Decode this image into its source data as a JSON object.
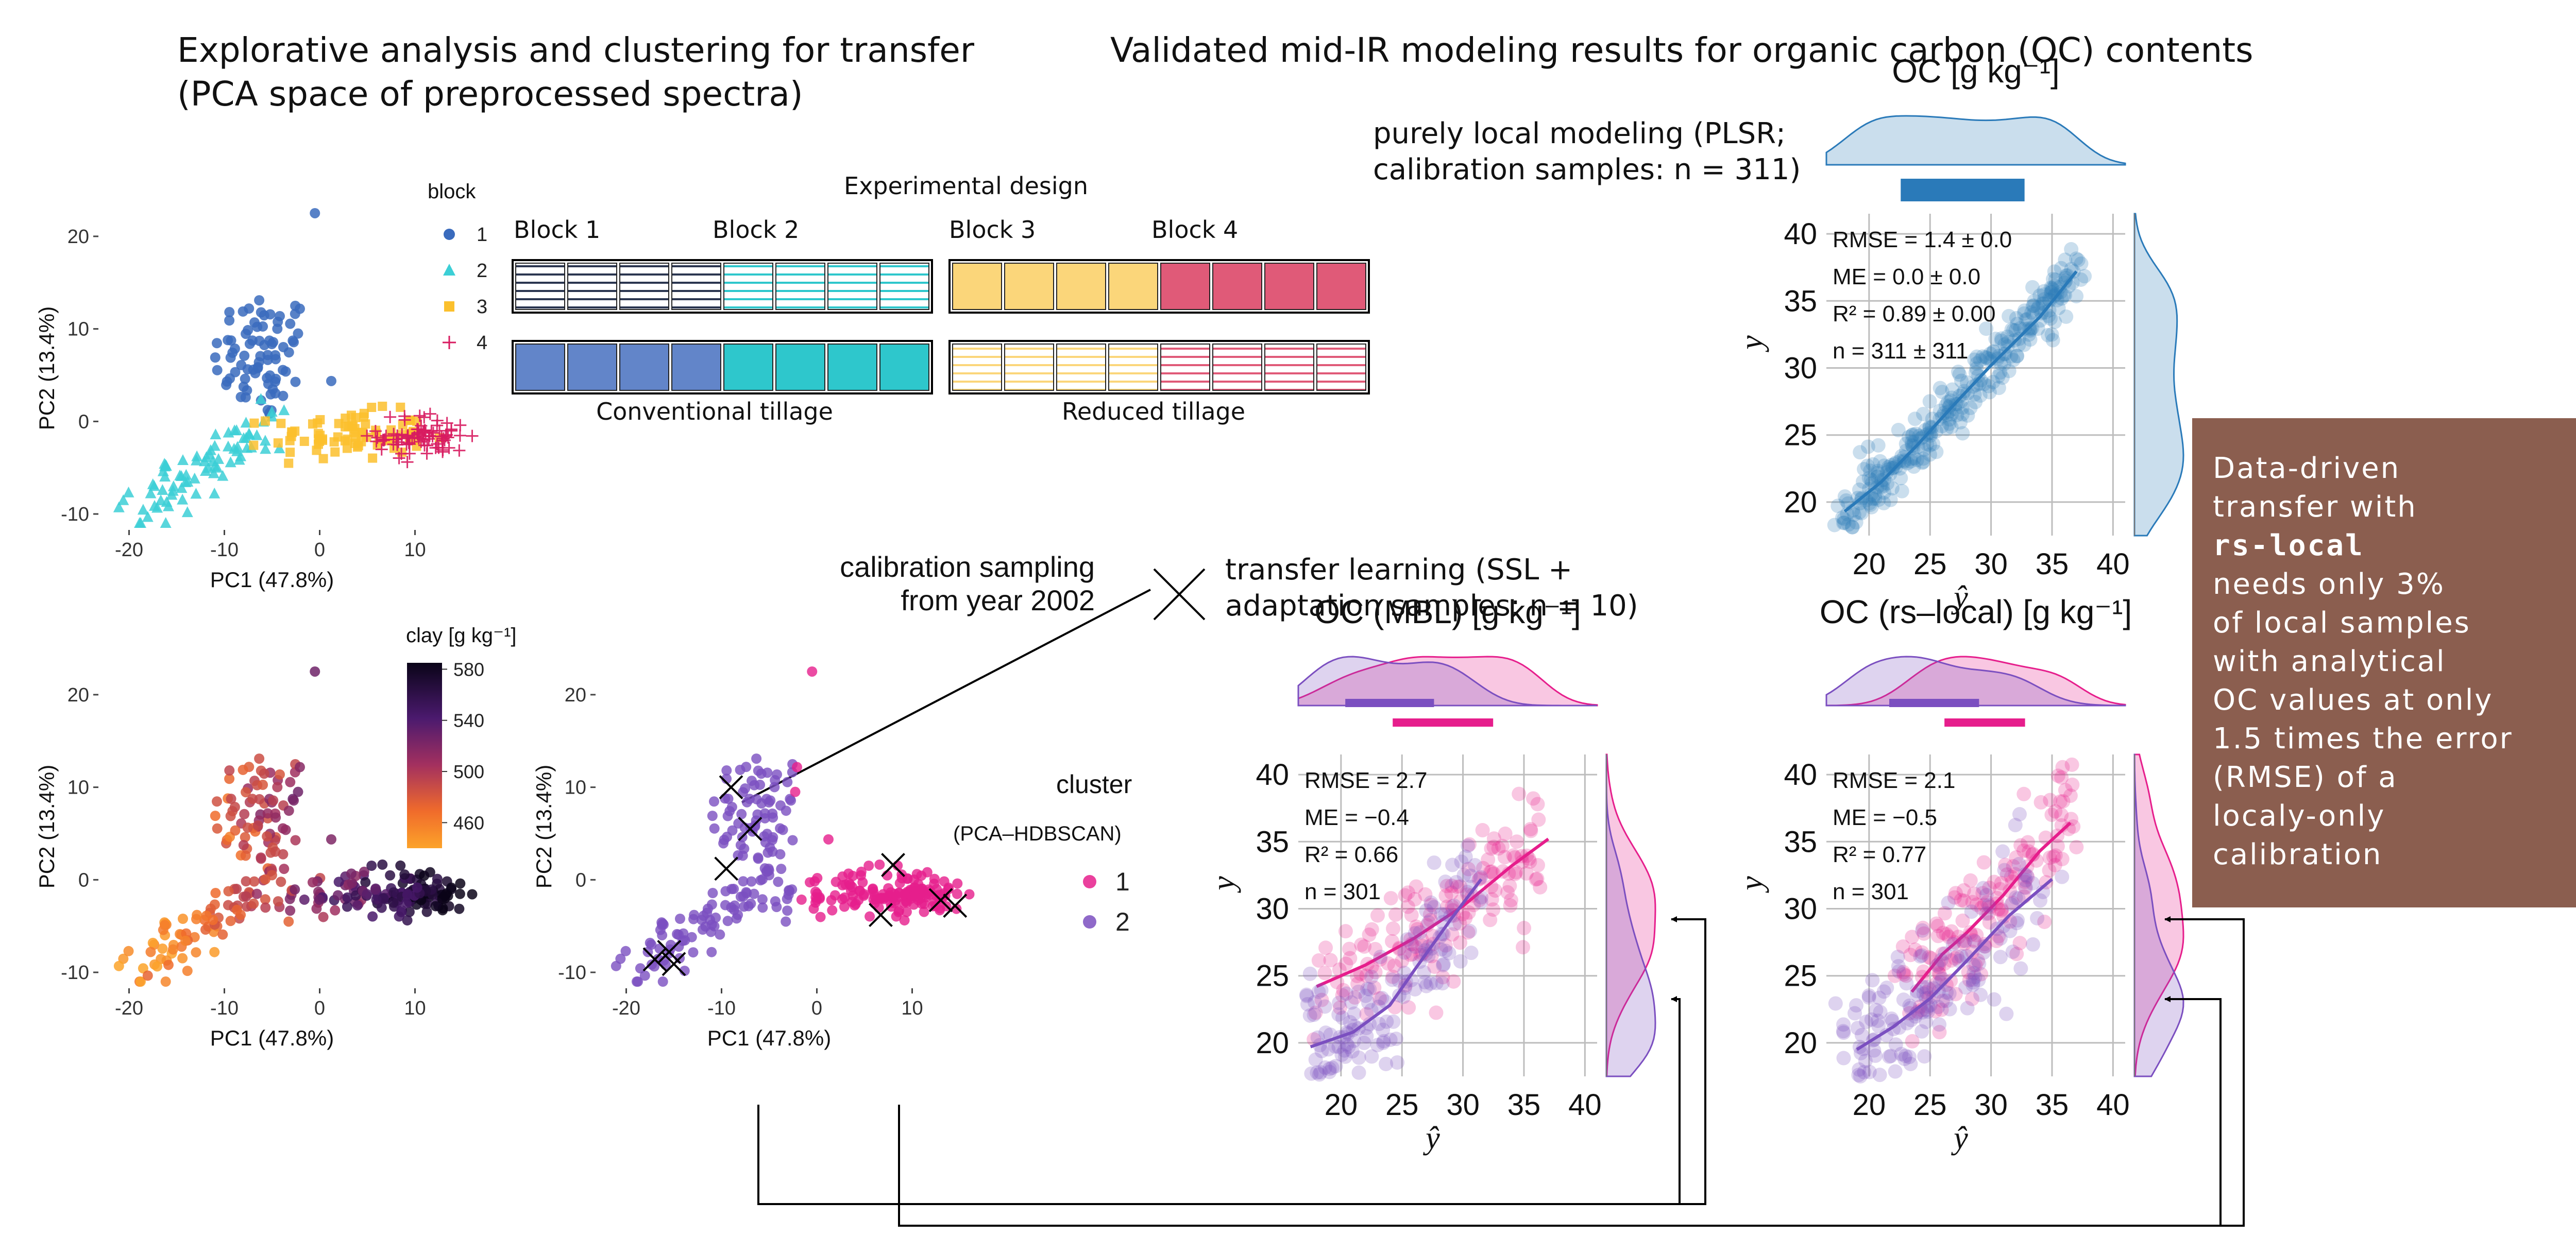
{
  "titles": {
    "left_line1": "Explorative analysis and clustering for transfer",
    "left_line2": "(PCA space of preprocessed spectra)",
    "right": "Validated mid-IR modeling results for organic carbon (OC) contents"
  },
  "labels": {
    "local_line1": "purely local modeling (PLSR;",
    "local_line2": "calibration samples: n = 311)",
    "calib_line1": "calibration sampling",
    "calib_line2": "from year 2002",
    "transfer_line1": "transfer learning (SSL +",
    "transfer_line2": "adaptation samples: n = 10)"
  },
  "design": {
    "title": "Experimental design",
    "blocks": [
      "Block 1",
      "Block 2",
      "Block 3",
      "Block 4"
    ],
    "conventional": "Conventional tillage",
    "reduced": "Reduced tillage",
    "block_colors": [
      "#6285c9",
      "#2ec7cc",
      "#fbd67a",
      "#e05a78"
    ],
    "dark_stripe": "#2b3650"
  },
  "callout": {
    "line1": "Data-driven",
    "line2": "transfer with",
    "line3": "rs-local",
    "line4": "needs only 3%",
    "line5": "of local samples",
    "line6": "with analytical",
    "line7": "OC values at only",
    "line8": "1.5 times the error",
    "line9": "(RMSE) of a",
    "line10": "localy-only",
    "line11": "calibration",
    "color": "#8b5e4f"
  },
  "chart_data": [
    {
      "id": "pca_block",
      "type": "scatter",
      "xlabel": "PC1 (47.8%)",
      "ylabel": "PC2 (13.4%)",
      "xlim": [
        -23,
        17
      ],
      "ylim": [
        -11.5,
        23
      ],
      "xticks": [
        -20,
        -10,
        0,
        10
      ],
      "yticks": [
        -10,
        0,
        10,
        20
      ],
      "legend_title": "block",
      "legend": [
        "1",
        "2",
        "3",
        "4"
      ],
      "colors": [
        "#3a6bbd",
        "#3ccfd6",
        "#fbc02d",
        "#d81b60"
      ],
      "series_centers": [
        {
          "name": "1",
          "center": [
            -6,
            7
          ],
          "spread": [
            2.6,
            3.6
          ]
        },
        {
          "name": "2",
          "center": [
            -14,
            -4.5
          ],
          "spread": [
            3.8,
            3.0
          ]
        },
        {
          "name": "3",
          "center": [
            3,
            -1.5
          ],
          "spread": [
            4.0,
            1.3
          ]
        },
        {
          "name": "4",
          "center": [
            11,
            -1.6
          ],
          "spread": [
            2.4,
            1.2
          ]
        }
      ],
      "grid": false
    },
    {
      "id": "pca_clay",
      "type": "scatter",
      "xlabel": "PC1 (47.8%)",
      "ylabel": "PC2 (13.4%)",
      "xlim": [
        -23,
        17
      ],
      "ylim": [
        -11.5,
        23
      ],
      "xticks": [
        -20,
        -10,
        0,
        10
      ],
      "yticks": [
        -10,
        0,
        10,
        20
      ],
      "colorbar_title": "clay [g kg⁻¹]",
      "colorbar_ticks": [
        "580",
        "540",
        "500",
        "460"
      ],
      "colorbar_range": [
        440,
        585
      ],
      "grid": false
    },
    {
      "id": "pca_cluster",
      "type": "scatter",
      "xlabel": "PC1 (47.8%)",
      "ylabel": "PC2 (13.4%)",
      "xlim": [
        -23,
        17
      ],
      "ylim": [
        -11.5,
        23
      ],
      "xticks": [
        -20,
        -10,
        0,
        10
      ],
      "yticks": [
        -10,
        0,
        10,
        20
      ],
      "legend_title_line1": "cluster",
      "legend_title_line2": "(PCA–HDBSCAN)",
      "legend": [
        "1",
        "2"
      ],
      "colors": [
        "#e61e8c",
        "#7b4fc0"
      ],
      "adaptation_samples": [
        [
          -9,
          10
        ],
        [
          -7,
          5.5
        ],
        [
          -9.5,
          1.2
        ],
        [
          -15.5,
          -7.8
        ],
        [
          -15,
          -9.1
        ],
        [
          8,
          1.6
        ],
        [
          6.7,
          -3.8
        ],
        [
          13,
          -2.2
        ],
        [
          14.5,
          -2.8
        ],
        [
          -17,
          -8.6
        ]
      ],
      "grid": false
    },
    {
      "id": "oc_local",
      "type": "scatter",
      "title": "OC [g kg⁻¹]",
      "xlabel": "ŷ",
      "ylabel": "y",
      "xlim": [
        16.5,
        41
      ],
      "ylim": [
        17.5,
        41.5
      ],
      "xticks": [
        20,
        25,
        30,
        35,
        40
      ],
      "yticks": [
        20,
        25,
        30,
        35,
        40
      ],
      "stats": [
        "RMSE = 1.4 ± 0.0",
        "ME = 0.0 ± 0.0",
        "R² = 0.89 ± 0.00",
        "n = 311 ± 311"
      ],
      "fit": [
        [
          18,
          19.3
        ],
        [
          21,
          21.5
        ],
        [
          24,
          24.3
        ],
        [
          27,
          27.3
        ],
        [
          30,
          30.2
        ],
        [
          34,
          33.8
        ],
        [
          37,
          37.2
        ]
      ],
      "colors": [
        "#2a7ab9"
      ],
      "grid": true
    },
    {
      "id": "oc_mbl",
      "type": "scatter",
      "title": "OC (MBL) [g kg⁻¹]",
      "xlabel": "ŷ",
      "ylabel": "y",
      "xlim": [
        16.5,
        41
      ],
      "ylim": [
        17.5,
        41.5
      ],
      "xticks": [
        20,
        25,
        30,
        35,
        40
      ],
      "yticks": [
        20,
        25,
        30,
        35,
        40
      ],
      "stats": [
        "RMSE = 2.7",
        "ME = −0.4",
        "R² = 0.66",
        "n = 301"
      ],
      "series": [
        {
          "name": "1",
          "fit": [
            [
              18,
              24.2
            ],
            [
              22,
              25.8
            ],
            [
              26,
              27.8
            ],
            [
              30,
              30.2
            ],
            [
              34,
              33.2
            ],
            [
              37,
              35.2
            ]
          ]
        },
        {
          "name": "2",
          "fit": [
            [
              17.5,
              19.7
            ],
            [
              21,
              20.8
            ],
            [
              24,
              22.8
            ],
            [
              26,
              25.4
            ],
            [
              29,
              29.2
            ],
            [
              31.5,
              32.2
            ]
          ]
        }
      ],
      "colors": [
        "#e61e8c",
        "#7b4fc0"
      ],
      "grid": true
    },
    {
      "id": "oc_rslocal",
      "type": "scatter",
      "title": "OC (rs–local) [g kg⁻¹]",
      "xlabel": "ŷ",
      "ylabel": "y",
      "xlim": [
        16.5,
        41
      ],
      "ylim": [
        17.5,
        41.5
      ],
      "xticks": [
        20,
        25,
        30,
        35,
        40
      ],
      "yticks": [
        20,
        25,
        30,
        35,
        40
      ],
      "stats": [
        "RMSE = 2.1",
        "ME = −0.5",
        "R² = 0.77",
        "n = 301"
      ],
      "series": [
        {
          "name": "1",
          "fit": [
            [
              23.5,
              23.8
            ],
            [
              26,
              26.6
            ],
            [
              28,
              28.2
            ],
            [
              31,
              31
            ],
            [
              34,
              34.3
            ],
            [
              36.5,
              36.4
            ]
          ]
        },
        {
          "name": "2",
          "fit": [
            [
              19,
              19.5
            ],
            [
              22,
              21.2
            ],
            [
              25,
              23.3
            ],
            [
              28,
              26.1
            ],
            [
              31.5,
              29.5
            ],
            [
              35,
              32.2
            ]
          ]
        }
      ],
      "colors": [
        "#e61e8c",
        "#7b4fc0"
      ],
      "grid": true
    }
  ]
}
